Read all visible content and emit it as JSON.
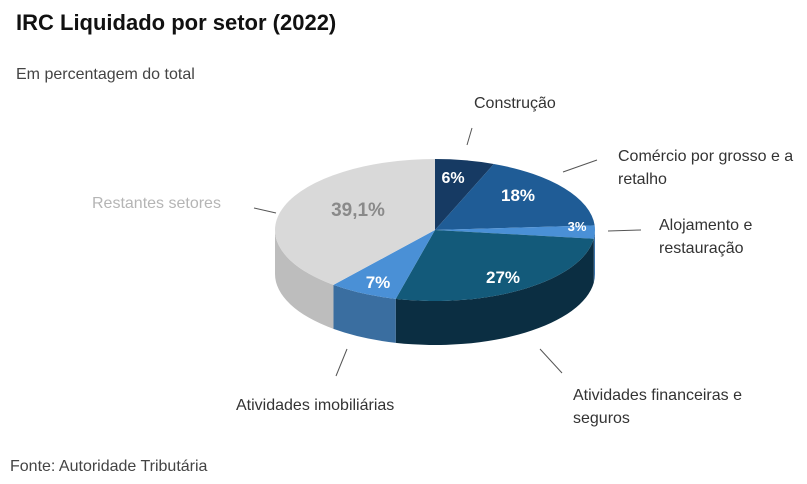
{
  "title": "IRC Liquidado por setor (2022)",
  "subtitle": "Em percentagem do total",
  "source": "Fonte: Autoridade Tributária",
  "chart_data": {
    "type": "pie",
    "style": "3d",
    "start": "top, clockwise",
    "categories": [
      "Construção",
      "Comércio por grosso e a retalho",
      "Alojamento e restauração",
      "Atividades financeiras e seguros",
      "Atividades imobiliárias",
      "Restantes setores"
    ],
    "values": [
      6,
      18,
      3,
      27,
      7,
      39.1
    ],
    "data_labels": [
      "6%",
      "18%",
      "3%",
      "27%",
      "7%",
      "39,1%"
    ],
    "colors": [
      "#163a63",
      "#1f5c96",
      "#4a90d6",
      "#135a7a",
      "#4a90d6",
      "#d9d9d9"
    ],
    "side_colors": [
      "#0f2a48",
      "#16446f",
      "#3a72aa",
      "#0b2e42",
      "#3a6ea0",
      "#bdbdbd"
    ],
    "label_colors": [
      "#ffffff",
      "#ffffff",
      "#ffffff",
      "#ffffff",
      "#ffffff",
      "#8a8a8a"
    ],
    "category_label_colors": [
      "#333333",
      "#333333",
      "#333333",
      "#333333",
      "#333333",
      "#b5b5b5"
    ]
  }
}
